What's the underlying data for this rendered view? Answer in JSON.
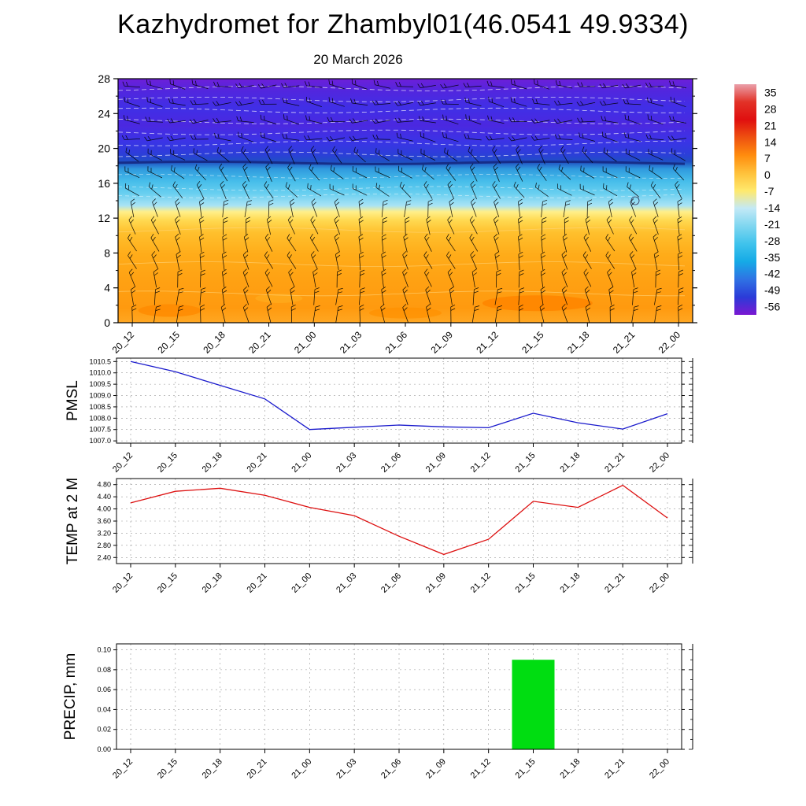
{
  "title": "Kazhydromet for Zhambyl01(46.0541 49.9334)",
  "subtitle": "20 March 2026",
  "station": {
    "id": "Zhambyl01",
    "lat": "46.0541",
    "lon": "49.9334"
  },
  "time_labels": [
    "20_12",
    "20_15",
    "20_18",
    "20_21",
    "21_00",
    "21_03",
    "21_06",
    "21_09",
    "21_12",
    "21_15",
    "21_18",
    "21_21",
    "22_00"
  ],
  "colors": {
    "pmsl_line": "#1a1acc",
    "temp_line": "#dd1111",
    "precip_bar": "#00dd11",
    "grid": "#999999",
    "axis": "#000000"
  },
  "chart_data": [
    {
      "type": "heatmap",
      "title": "20 March 2026",
      "description": "time-height temperature cross-section, shaded (deg C), wind barbs overlaid",
      "x": [
        "20_12",
        "20_15",
        "20_18",
        "20_21",
        "21_00",
        "21_03",
        "21_06",
        "21_09",
        "21_12",
        "21_15",
        "21_18",
        "21_21",
        "22_00"
      ],
      "ylim": [
        0,
        28
      ],
      "yticks": [
        0,
        4,
        8,
        12,
        16,
        20,
        24,
        28
      ],
      "ytick_labels": [
        "0",
        "4",
        "8",
        "12",
        "16",
        "20",
        "24",
        "28"
      ],
      "legend_position": "right-colorbar",
      "colorbar_ticks": [
        35,
        28,
        21,
        14,
        7,
        0,
        -7,
        -14,
        -21,
        -28,
        -35,
        -42,
        -49,
        -56
      ],
      "colorbar_colors": [
        "#eaa0aa",
        "#e23227",
        "#e00f0f",
        "#ee5110",
        "#ff8c0e",
        "#ffc13a",
        "#ffe96d",
        "#c3e9f6",
        "#7fd6f0",
        "#3fc3ec",
        "#15aae6",
        "#2f72e4",
        "#2b3bd8",
        "#7a18d2"
      ],
      "fill_gradient": [
        [
          0.0,
          "#6d1fd8"
        ],
        [
          0.05,
          "#5226de"
        ],
        [
          0.12,
          "#402fe6"
        ],
        [
          0.19,
          "#4b28e0"
        ],
        [
          0.26,
          "#3a34e6"
        ],
        [
          0.31,
          "#2c3ed9"
        ],
        [
          0.34,
          "#1f4fc4"
        ],
        [
          0.37,
          "#2f9ade"
        ],
        [
          0.42,
          "#46bdea"
        ],
        [
          0.47,
          "#69cff0"
        ],
        [
          0.52,
          "#a9e3f5"
        ],
        [
          0.545,
          "#ffef8a"
        ],
        [
          0.58,
          "#ffd951"
        ],
        [
          0.63,
          "#ffc02d"
        ],
        [
          0.72,
          "#ffac19"
        ],
        [
          0.84,
          "#ffa012"
        ],
        [
          0.94,
          "#ff9a0f"
        ],
        [
          1.0,
          "#ffa722"
        ]
      ]
    },
    {
      "type": "line",
      "name": "PMSL",
      "color": "#1a1acc",
      "categories": [
        "20_12",
        "20_15",
        "20_18",
        "20_21",
        "21_00",
        "21_03",
        "21_06",
        "21_09",
        "21_12",
        "21_15",
        "21_18",
        "21_21",
        "22_00"
      ],
      "values": [
        1010.5,
        1010.05,
        1009.45,
        1008.85,
        1007.5,
        1007.6,
        1007.7,
        1007.62,
        1007.58,
        1008.22,
        1007.8,
        1007.52,
        1008.2
      ],
      "ylim": [
        1006.9,
        1010.65
      ],
      "yticks": [
        1007.0,
        1007.5,
        1008.0,
        1008.5,
        1009.0,
        1009.5,
        1010.0,
        1010.5
      ],
      "ytick_labels": [
        "1007.0",
        "1007.5",
        "1008.0",
        "1008.5",
        "1009.0",
        "1009.5",
        "1010.0",
        "1010.5"
      ],
      "grid": true
    },
    {
      "type": "line",
      "name": "TEMP at 2 M",
      "color": "#dd1111",
      "categories": [
        "20_12",
        "20_15",
        "20_18",
        "20_21",
        "21_00",
        "21_03",
        "21_06",
        "21_09",
        "21_12",
        "21_15",
        "21_18",
        "21_21",
        "22_00"
      ],
      "values": [
        4.2,
        4.58,
        4.68,
        4.45,
        4.05,
        3.78,
        3.1,
        2.5,
        3.0,
        4.25,
        4.05,
        4.78,
        3.7
      ],
      "ylim": [
        2.2,
        5.0
      ],
      "yticks": [
        2.4,
        2.8,
        3.2,
        3.6,
        4.0,
        4.4,
        4.8
      ],
      "ytick_labels": [
        "2.40",
        "2.80",
        "3.20",
        "3.60",
        "4.00",
        "4.40",
        "4.80"
      ],
      "grid": true
    },
    {
      "type": "bar",
      "name": "PRECIP, mm",
      "color": "#00dd11",
      "categories": [
        "20_12",
        "20_15",
        "20_18",
        "20_21",
        "21_00",
        "21_03",
        "21_06",
        "21_09",
        "21_12",
        "21_15",
        "21_18",
        "21_21",
        "22_00"
      ],
      "values": [
        0,
        0,
        0,
        0,
        0,
        0,
        0,
        0,
        0,
        0.09,
        0,
        0,
        0
      ],
      "ylim": [
        0,
        0.106
      ],
      "yticks": [
        0.0,
        0.02,
        0.04,
        0.06,
        0.08,
        0.1
      ],
      "ytick_labels": [
        "0.00",
        "0.02",
        "0.04",
        "0.06",
        "0.08",
        "0.10"
      ],
      "grid": true
    }
  ]
}
